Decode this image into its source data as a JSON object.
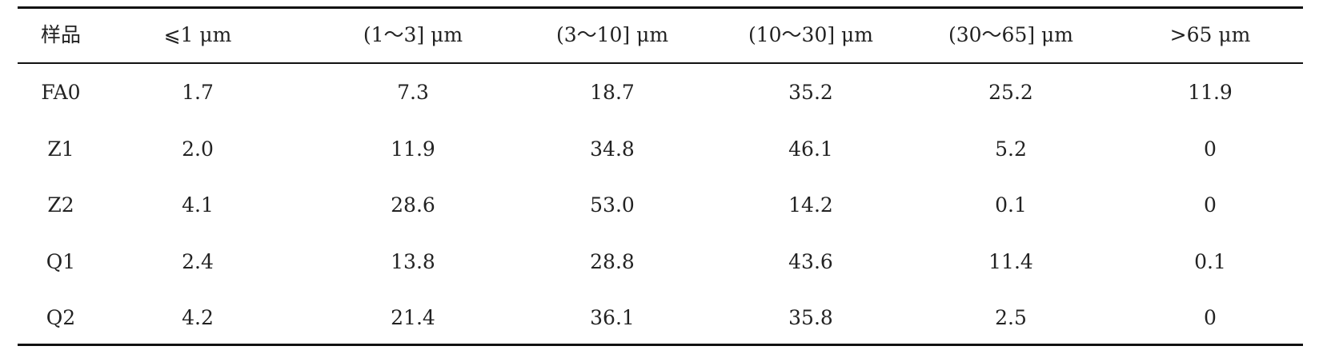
{
  "table": {
    "header": [
      "样品",
      "⩽1 μm",
      "(1～3] μm",
      "(3～10] μm",
      "(10～30] μm",
      "(30～65] μm",
      ">65 μm"
    ],
    "rows": [
      [
        "FA0",
        "1.7",
        "7.3",
        "18.7",
        "35.2",
        "25.2",
        "11.9"
      ],
      [
        "Z1",
        "2.0",
        "11.9",
        "34.8",
        "46.1",
        "5.2",
        "0"
      ],
      [
        "Z2",
        "4.1",
        "28.6",
        "53.0",
        "14.2",
        "0.1",
        "0"
      ],
      [
        "Q1",
        "2.4",
        "13.8",
        "28.8",
        "43.6",
        "11.4",
        "0.1"
      ],
      [
        "Q2",
        "4.2",
        "21.4",
        "36.1",
        "35.8",
        "2.5",
        "0"
      ]
    ]
  }
}
